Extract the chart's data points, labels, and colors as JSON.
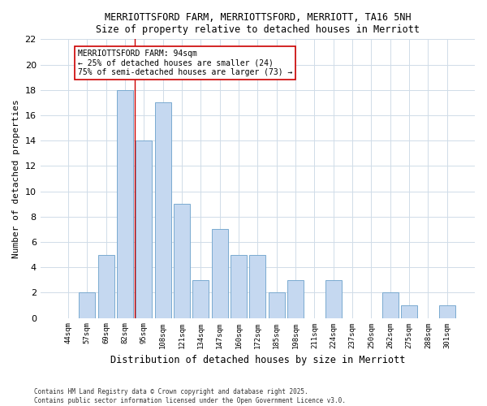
{
  "title1": "MERRIOTTSFORD FARM, MERRIOTTSFORD, MERRIOTT, TA16 5NH",
  "title2": "Size of property relative to detached houses in Merriott",
  "xlabel": "Distribution of detached houses by size in Merriott",
  "ylabel": "Number of detached properties",
  "bar_labels": [
    "44sqm",
    "57sqm",
    "69sqm",
    "82sqm",
    "95sqm",
    "108sqm",
    "121sqm",
    "134sqm",
    "147sqm",
    "160sqm",
    "172sqm",
    "185sqm",
    "198sqm",
    "211sqm",
    "224sqm",
    "237sqm",
    "250sqm",
    "262sqm",
    "275sqm",
    "288sqm",
    "301sqm"
  ],
  "bar_values": [
    0,
    2,
    5,
    18,
    14,
    17,
    9,
    3,
    7,
    5,
    5,
    2,
    3,
    0,
    3,
    0,
    0,
    2,
    1,
    0,
    1
  ],
  "bar_color": "#c5d8f0",
  "bar_edge_color": "#7aaad0",
  "ylim": [
    0,
    22
  ],
  "yticks": [
    0,
    2,
    4,
    6,
    8,
    10,
    12,
    14,
    16,
    18,
    20,
    22
  ],
  "vline_x": 4.0,
  "vline_color": "#cc0000",
  "annotation_text": "MERRIOTTSFORD FARM: 94sqm\n← 25% of detached houses are smaller (24)\n75% of semi-detached houses are larger (73) →",
  "annotation_box_color": "#ffffff",
  "annotation_border_color": "#cc0000",
  "footer1": "Contains HM Land Registry data © Crown copyright and database right 2025.",
  "footer2": "Contains public sector information licensed under the Open Government Licence v3.0.",
  "bg_color": "#ffffff",
  "plot_bg_color": "#ffffff"
}
